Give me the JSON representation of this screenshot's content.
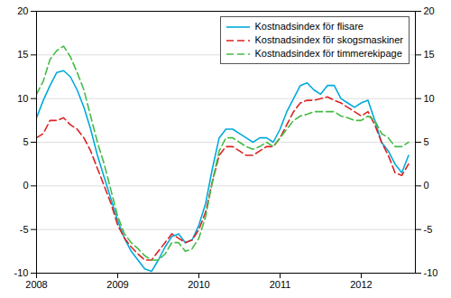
{
  "chart_data": {
    "type": "line",
    "x": [
      2008.0,
      2008.0833,
      2008.1667,
      2008.25,
      2008.3333,
      2008.4167,
      2008.5,
      2008.5833,
      2008.6667,
      2008.75,
      2008.8333,
      2008.9167,
      2009.0,
      2009.0833,
      2009.1667,
      2009.25,
      2009.3333,
      2009.4167,
      2009.5,
      2009.5833,
      2009.6667,
      2009.75,
      2009.8333,
      2009.9167,
      2010.0,
      2010.0833,
      2010.1667,
      2010.25,
      2010.3333,
      2010.4167,
      2010.5,
      2010.5833,
      2010.6667,
      2010.75,
      2010.8333,
      2010.9167,
      2011.0,
      2011.0833,
      2011.1667,
      2011.25,
      2011.3333,
      2011.4167,
      2011.5,
      2011.5833,
      2011.6667,
      2011.75,
      2011.8333,
      2011.9167,
      2012.0,
      2012.0833,
      2012.1667,
      2012.25,
      2012.3333,
      2012.4167,
      2012.5,
      2012.5833
    ],
    "series": [
      {
        "name": "Kostnadsindex för flisare",
        "color": "#00aadd",
        "line_style": "solid",
        "values": [
          7.8,
          9.8,
          11.5,
          13.0,
          13.2,
          12.5,
          11.0,
          9.0,
          6.5,
          3.5,
          1.0,
          -1.5,
          -4.0,
          -6.0,
          -7.5,
          -8.5,
          -9.5,
          -9.8,
          -8.5,
          -7.0,
          -5.8,
          -5.5,
          -6.5,
          -6.2,
          -4.5,
          -2.0,
          2.0,
          5.5,
          6.5,
          6.5,
          6.0,
          5.5,
          5.0,
          5.5,
          5.5,
          5.0,
          6.5,
          8.5,
          10.0,
          11.5,
          11.8,
          11.0,
          10.5,
          11.5,
          11.5,
          10.0,
          9.5,
          9.0,
          9.5,
          9.8,
          7.5,
          5.0,
          4.0,
          2.5,
          1.5,
          3.5
        ]
      },
      {
        "name": "Kostnadsindex för skogsmaskiner",
        "color": "#dd2222",
        "line_style": "dashed",
        "values": [
          5.5,
          6.0,
          7.5,
          7.5,
          7.8,
          7.0,
          6.5,
          5.5,
          4.0,
          2.0,
          0.0,
          -2.0,
          -4.5,
          -6.0,
          -7.0,
          -7.8,
          -8.5,
          -8.5,
          -7.5,
          -6.5,
          -5.5,
          -6.0,
          -6.5,
          -6.2,
          -5.0,
          -3.0,
          0.5,
          3.5,
          4.5,
          4.5,
          4.0,
          3.5,
          3.5,
          4.0,
          4.5,
          4.5,
          5.5,
          7.0,
          8.5,
          9.5,
          9.8,
          9.8,
          10.0,
          10.2,
          9.8,
          9.5,
          9.0,
          8.5,
          8.0,
          8.5,
          7.0,
          5.0,
          3.5,
          1.5,
          1.2,
          2.5
        ]
      },
      {
        "name": "Kostnadsindex för timmerekipage",
        "color": "#44bb44",
        "line_style": "dashed",
        "values": [
          10.5,
          12.0,
          14.5,
          15.5,
          16.0,
          14.8,
          13.0,
          11.0,
          8.0,
          5.0,
          2.5,
          -0.5,
          -3.5,
          -5.5,
          -6.5,
          -7.2,
          -8.0,
          -8.5,
          -8.5,
          -7.8,
          -6.5,
          -6.5,
          -7.5,
          -7.2,
          -6.0,
          -3.5,
          0.5,
          4.0,
          5.5,
          5.5,
          5.0,
          4.5,
          4.2,
          4.5,
          5.0,
          4.5,
          5.5,
          6.5,
          7.5,
          8.0,
          8.2,
          8.5,
          8.5,
          8.5,
          8.5,
          8.0,
          7.8,
          7.5,
          7.5,
          8.0,
          7.5,
          6.0,
          5.5,
          4.5,
          4.5,
          5.0
        ]
      }
    ],
    "xlim": [
      2008.0,
      2012.667
    ],
    "xticks": [
      2008,
      2009,
      2010,
      2011,
      2012
    ],
    "ylim": [
      -10,
      20
    ],
    "yticks": [
      -10,
      -5,
      0,
      5,
      10,
      15,
      20
    ],
    "y2lim": [
      -10,
      20
    ],
    "y2ticks": [
      -10,
      -5,
      0,
      5,
      10,
      15,
      20
    ],
    "grid": true,
    "legend": "upper right"
  }
}
